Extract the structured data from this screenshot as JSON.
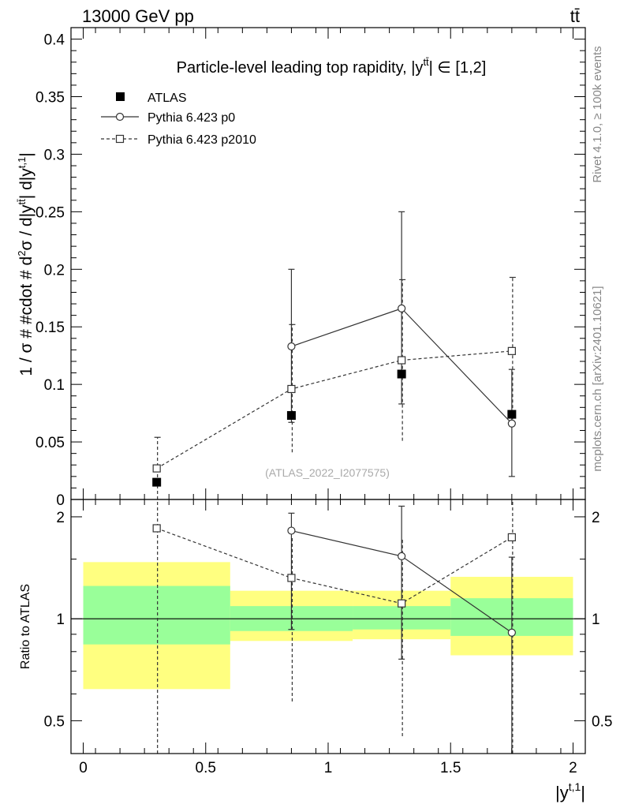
{
  "header": {
    "left": "13000 GeV pp",
    "right": "tt̄"
  },
  "side_labels": {
    "rivet": "Rivet 4.1.0, ≥ 100k events",
    "mcplots": "mcplots.cern.ch [arXiv:2401.10621]"
  },
  "chart_data": [
    {
      "type": "scatter",
      "title": "Particle-level leading top rapidity, |y̅tt̅| ∈ [1,2]",
      "title_main": "Particle-level leading top rapidity, |y",
      "title_sup": "tt̄",
      "title_tail": "| ∈ [1,2]",
      "ylabel": "1 / σ # #cdot # d²σ / d|yᵗᵗ̄| d|yᵗ˒1|",
      "ylabel_main": "1 / σ # #cdot # d",
      "ylabel_2": "2",
      "ylabel_mid": "σ / d|y",
      "ylabel_tt": "tt̄",
      "ylabel_mid2": "| d|y",
      "ylabel_t1": "t,1",
      "ylabel_end": "|",
      "watermark": "(ATLAS_2022_I2077575)",
      "xlim": [
        -0.05,
        2.05
      ],
      "ylim": [
        0,
        0.41
      ],
      "yticks": [
        0,
        0.05,
        0.1,
        0.15,
        0.2,
        0.25,
        0.3,
        0.35,
        0.4
      ],
      "ytick_labels": [
        "0",
        "0.05",
        "0.1",
        "0.15",
        "0.2",
        "0.25",
        "0.3",
        "0.35",
        "0.4"
      ],
      "legend": [
        {
          "name": "ATLAS",
          "marker": "filled-square",
          "line": "none"
        },
        {
          "name": "Pythia 6.423 p0",
          "marker": "open-circle",
          "line": "solid"
        },
        {
          "name": "Pythia 6.423 p2010",
          "marker": "open-square",
          "line": "dashed"
        }
      ],
      "series": [
        {
          "name": "ATLAS",
          "x": [
            0.3,
            0.85,
            1.3,
            1.75
          ],
          "y": [
            0.015,
            0.073,
            0.109,
            0.074
          ],
          "err": [
            0.0,
            0.0,
            0.0,
            0.0
          ]
        },
        {
          "name": "Pythia 6.423 p0",
          "x": [
            0.3,
            0.85,
            1.3,
            1.75
          ],
          "y": [
            null,
            0.133,
            0.166,
            0.066
          ],
          "ylo": [
            null,
            0.067,
            0.083,
            0.02
          ],
          "yhi": [
            null,
            0.2,
            0.25,
            0.113
          ]
        },
        {
          "name": "Pythia 6.423 p2010",
          "x": [
            0.3,
            0.85,
            1.3,
            1.75
          ],
          "y": [
            0.027,
            0.096,
            0.121,
            0.129
          ],
          "ylo": [
            0.0,
            0.041,
            0.051,
            0.065
          ],
          "yhi": [
            0.054,
            0.152,
            0.191,
            0.193
          ]
        }
      ]
    },
    {
      "type": "scatter",
      "ylabel": "Ratio to ATLAS",
      "xlabel": "|yᵗ˒1|",
      "xlabel_main": "|y",
      "xlabel_sup": "t,1",
      "xlabel_end": "|",
      "xlim": [
        -0.05,
        2.05
      ],
      "ylim": [
        0.4,
        2.25
      ],
      "xticks": [
        0,
        0.5,
        1,
        1.5,
        2
      ],
      "xtick_labels": [
        "0",
        "0.5",
        "1",
        "1.5",
        "2"
      ],
      "yticks": [
        0.5,
        1,
        2
      ],
      "ytick_labels": [
        "0.5",
        "1",
        "2"
      ],
      "bands": [
        {
          "x0": 0.0,
          "x1": 0.6,
          "green": [
            0.84,
            1.25
          ],
          "yellow": [
            0.62,
            1.47
          ]
        },
        {
          "x0": 0.6,
          "x1": 1.1,
          "green": [
            0.92,
            1.09
          ],
          "yellow": [
            0.86,
            1.21
          ]
        },
        {
          "x0": 1.1,
          "x1": 1.5,
          "green": [
            0.93,
            1.09
          ],
          "yellow": [
            0.87,
            1.21
          ]
        },
        {
          "x0": 1.5,
          "x1": 2.0,
          "green": [
            0.89,
            1.15
          ],
          "yellow": [
            0.78,
            1.33
          ]
        }
      ],
      "series": [
        {
          "name": "Pythia 6.423 p0",
          "x": [
            0.85,
            1.3,
            1.75
          ],
          "y": [
            1.82,
            1.53,
            0.91
          ],
          "ylo": [
            0.93,
            0.76,
            0.3
          ],
          "yhi": [
            2.05,
            2.15,
            1.52
          ]
        },
        {
          "name": "Pythia 6.423 p2010",
          "x": [
            0.3,
            0.85,
            1.3,
            1.75
          ],
          "y": [
            1.85,
            1.32,
            1.11,
            1.74
          ],
          "ylo": [
            0.3,
            0.57,
            0.45,
            0.3
          ],
          "yhi": [
            2.3,
            1.73,
            1.73,
            2.3
          ]
        }
      ]
    }
  ]
}
